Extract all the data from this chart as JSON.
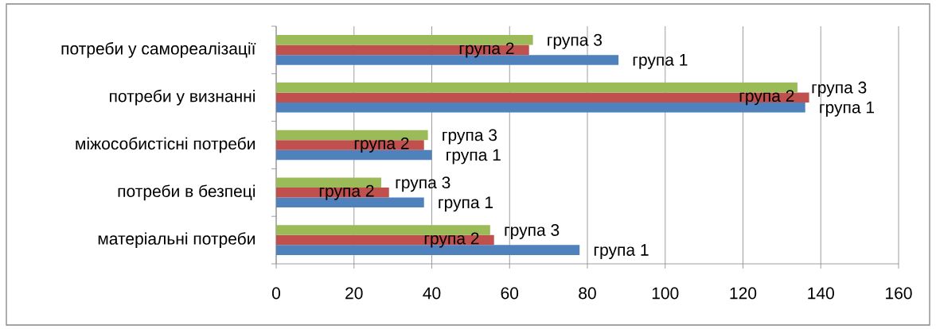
{
  "chart_data": {
    "type": "bar",
    "orientation": "horizontal",
    "categories": [
      "потреби у самореалізації",
      "потреби у визнанні",
      "міжособистісні потреби",
      "потреби в безпеці",
      "матеріальні потреби"
    ],
    "series": [
      {
        "name": "група 1",
        "color": "#4f81bd",
        "values": [
          88,
          136,
          40,
          38,
          78
        ]
      },
      {
        "name": "група 2",
        "color": "#c0504d",
        "values": [
          65,
          137,
          38,
          29,
          56
        ]
      },
      {
        "name": "група 3",
        "color": "#9bbb59",
        "values": [
          66,
          134,
          39,
          27,
          55
        ]
      }
    ],
    "xlim": [
      0,
      160
    ],
    "xticks": [
      0,
      20,
      40,
      60,
      80,
      100,
      120,
      140,
      160
    ],
    "grid": "x"
  }
}
